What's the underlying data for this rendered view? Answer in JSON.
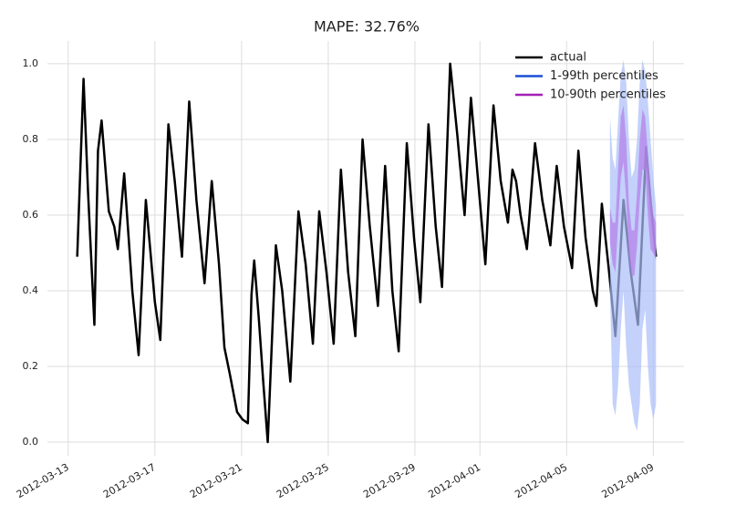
{
  "chart_data": {
    "type": "line",
    "title": "MAPE: 32.76%",
    "xlim": [
      "2012-03-12 01:00",
      "2012-04-10 10:00"
    ],
    "xticks": [
      "2012-03-13",
      "2012-03-17",
      "2012-03-21",
      "2012-03-25",
      "2012-03-29",
      "2012-04-01",
      "2012-04-05",
      "2012-04-09"
    ],
    "ylim": [
      -0.036,
      1.06
    ],
    "yticks": [
      {
        "value": 0,
        "label": "0.0"
      },
      {
        "value": 0.2,
        "label": "0.2"
      },
      {
        "value": 0.4,
        "label": "0.4"
      },
      {
        "value": 0.6,
        "label": "0.6"
      },
      {
        "value": 0.8,
        "label": "0.8"
      },
      {
        "value": 1,
        "label": "1.0"
      }
    ],
    "grid": true,
    "legend": "upper right",
    "series": [
      {
        "name": "actual",
        "color": "#000000",
        "x": [
          "2012-03-13 10:00",
          "2012-03-13 17:00",
          "2012-03-13 22:00",
          "2012-03-14 05:00",
          "2012-03-14 09:00",
          "2012-03-14 13:00",
          "2012-03-14 21:00",
          "2012-03-15 03:00",
          "2012-03-15 07:00",
          "2012-03-15 14:00",
          "2012-03-15 23:00",
          "2012-03-16 06:00",
          "2012-03-16 14:00",
          "2012-03-17 00:00",
          "2012-03-17 06:00",
          "2012-03-17 15:00",
          "2012-03-17 22:00",
          "2012-03-18 06:00",
          "2012-03-18 14:00",
          "2012-03-18 22:00",
          "2012-03-19 07:00",
          "2012-03-19 15:00",
          "2012-03-19 23:00",
          "2012-03-20 05:00",
          "2012-03-20 11:00",
          "2012-03-20 19:00",
          "2012-03-21 01:00",
          "2012-03-21 07:00",
          "2012-03-21 11:00",
          "2012-03-21 14:00",
          "2012-03-21 19:00",
          "2012-03-22 00:00",
          "2012-03-22 05:00",
          "2012-03-22 14:00",
          "2012-03-22 21:00",
          "2012-03-23 06:00",
          "2012-03-23 15:00",
          "2012-03-23 23:00",
          "2012-03-24 07:00",
          "2012-03-24 14:00",
          "2012-03-24 22:00",
          "2012-03-25 06:00",
          "2012-03-25 14:00",
          "2012-03-25 22:00",
          "2012-03-26 06:00",
          "2012-03-26 14:00",
          "2012-03-26 22:00",
          "2012-03-27 07:00",
          "2012-03-27 15:00",
          "2012-03-27 23:00",
          "2012-03-28 06:00",
          "2012-03-28 15:00",
          "2012-03-28 23:00",
          "2012-03-29 06:00",
          "2012-03-29 15:00",
          "2012-03-29 23:00",
          "2012-03-30 06:00",
          "2012-03-30 15:00",
          "2012-03-30 23:00",
          "2012-03-31 07:00",
          "2012-03-31 14:00",
          "2012-03-31 22:00",
          "2012-04-01 06:00",
          "2012-04-01 15:00",
          "2012-04-01 23:00",
          "2012-04-02 07:00",
          "2012-04-02 12:00",
          "2012-04-02 16:00",
          "2012-04-02 21:00",
          "2012-04-03 04:00",
          "2012-04-03 13:00",
          "2012-04-03 21:00",
          "2012-04-04 06:00",
          "2012-04-04 13:00",
          "2012-04-04 21:00",
          "2012-04-05 06:00",
          "2012-04-05 13:00",
          "2012-04-05 21:00",
          "2012-04-06 05:00",
          "2012-04-06 09:00",
          "2012-04-06 15:00",
          "2012-04-06 23:00",
          "2012-04-07 06:00",
          "2012-04-07 15:00",
          "2012-04-07 23:00",
          "2012-04-08 07:00",
          "2012-04-08 16:00",
          "2012-04-08 22:00",
          "2012-04-09 03:00"
        ],
        "values": [
          0.49,
          0.96,
          0.66,
          0.31,
          0.77,
          0.85,
          0.61,
          0.57,
          0.51,
          0.71,
          0.4,
          0.23,
          0.64,
          0.37,
          0.27,
          0.84,
          0.69,
          0.49,
          0.9,
          0.64,
          0.42,
          0.69,
          0.47,
          0.25,
          0.18,
          0.08,
          0.06,
          0.05,
          0.39,
          0.48,
          0.33,
          0.16,
          0.0,
          0.52,
          0.4,
          0.16,
          0.61,
          0.47,
          0.26,
          0.61,
          0.45,
          0.26,
          0.72,
          0.45,
          0.28,
          0.8,
          0.57,
          0.36,
          0.73,
          0.4,
          0.24,
          0.79,
          0.54,
          0.37,
          0.84,
          0.57,
          0.41,
          1.0,
          0.81,
          0.6,
          0.91,
          0.69,
          0.47,
          0.89,
          0.69,
          0.58,
          0.72,
          0.69,
          0.6,
          0.51,
          0.79,
          0.64,
          0.52,
          0.73,
          0.57,
          0.46,
          0.77,
          0.54,
          0.4,
          0.36,
          0.63,
          0.45,
          0.28,
          0.64,
          0.45,
          0.31,
          0.78,
          0.61,
          0.49
        ]
      },
      {
        "name": "1-99th percentiles",
        "color": "#1a4fd6",
        "fill": "#a9bdfa",
        "x": [
          "2012-04-07 00:00",
          "2012-04-07 03:00",
          "2012-04-07 06:00",
          "2012-04-07 09:00",
          "2012-04-07 12:00",
          "2012-04-07 15:00",
          "2012-04-07 18:00",
          "2012-04-07 21:00",
          "2012-04-08 00:00",
          "2012-04-08 03:00",
          "2012-04-08 06:00",
          "2012-04-08 09:00",
          "2012-04-08 12:00",
          "2012-04-08 15:00",
          "2012-04-08 18:00",
          "2012-04-08 21:00",
          "2012-04-09 00:00",
          "2012-04-09 03:00"
        ],
        "lower": [
          0.4,
          0.1,
          0.07,
          0.15,
          0.3,
          0.4,
          0.25,
          0.15,
          0.1,
          0.05,
          0.03,
          0.1,
          0.3,
          0.35,
          0.2,
          0.1,
          0.06,
          0.1
        ],
        "upper": [
          0.86,
          0.75,
          0.72,
          0.85,
          0.97,
          1.01,
          0.95,
          0.8,
          0.7,
          0.72,
          0.8,
          0.95,
          1.01,
          0.98,
          0.9,
          0.8,
          0.7,
          0.62
        ]
      },
      {
        "name": "10-90th percentiles",
        "color": "#a51fb8",
        "fill": "#b57ee8",
        "x": [
          "2012-04-07 00:00",
          "2012-04-07 03:00",
          "2012-04-07 06:00",
          "2012-04-07 09:00",
          "2012-04-07 12:00",
          "2012-04-07 15:00",
          "2012-04-07 18:00",
          "2012-04-07 21:00",
          "2012-04-08 00:00",
          "2012-04-08 03:00",
          "2012-04-08 06:00",
          "2012-04-08 09:00",
          "2012-04-08 12:00",
          "2012-04-08 15:00",
          "2012-04-08 18:00",
          "2012-04-08 21:00",
          "2012-04-09 00:00",
          "2012-04-09 03:00"
        ],
        "lower": [
          0.53,
          0.47,
          0.45,
          0.58,
          0.7,
          0.74,
          0.64,
          0.49,
          0.44,
          0.44,
          0.52,
          0.64,
          0.72,
          0.72,
          0.6,
          0.51,
          0.5,
          0.48
        ],
        "upper": [
          0.62,
          0.58,
          0.58,
          0.72,
          0.86,
          0.89,
          0.8,
          0.63,
          0.56,
          0.56,
          0.66,
          0.8,
          0.88,
          0.86,
          0.76,
          0.66,
          0.6,
          0.58
        ]
      }
    ]
  }
}
